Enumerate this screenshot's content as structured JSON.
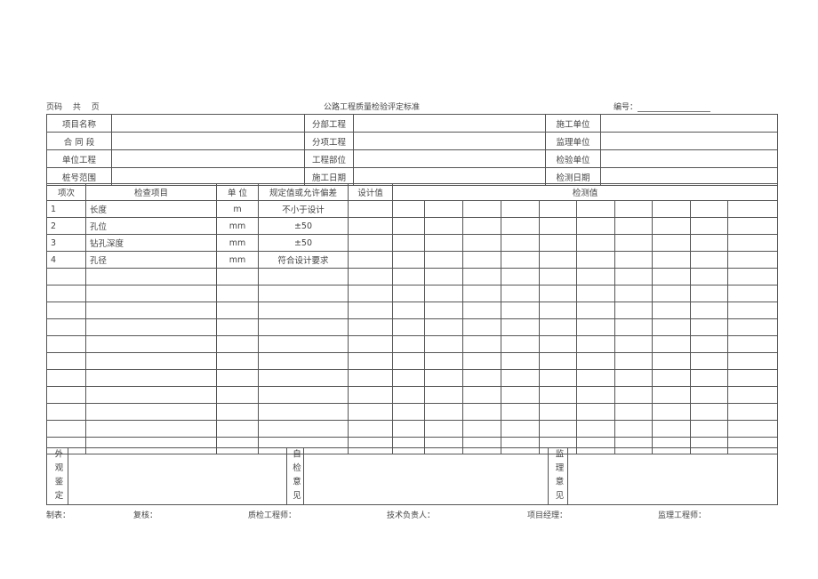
{
  "header": {
    "page_label": "页码　 共　 页",
    "title": "公路工程质量检验评定标准",
    "number_label": "编号："
  },
  "info_rows": [
    {
      "l1": "项目名称",
      "l2": "分部工程",
      "l3": "施工单位"
    },
    {
      "l1": "合 同 段",
      "l2": "分项工程",
      "l3": "监理单位"
    },
    {
      "l1": "单位工程",
      "l2": "工程部位",
      "l3": "检验单位"
    },
    {
      "l1": "桩号范围",
      "l2": "施工日期",
      "l3": "检测日期"
    }
  ],
  "columns": {
    "no": "项次",
    "item": "检查项目",
    "unit": "单 位",
    "spec": "规定值或允许偏差",
    "design": "设计值",
    "measured": "检测值"
  },
  "items": [
    {
      "no": "1",
      "item": "长度",
      "unit": "m",
      "spec": "不小于设计"
    },
    {
      "no": "2",
      "item": "孔位",
      "unit": "mm",
      "spec": "±50"
    },
    {
      "no": "3",
      "item": "钻孔深度",
      "unit": "mm",
      "spec": "±50"
    },
    {
      "no": "4",
      "item": "孔径",
      "unit": "mm",
      "spec": "符合设计要求"
    }
  ],
  "bottom": {
    "appearance": "外观鉴定",
    "self_check": "自检意见",
    "supervision": "监理意见"
  },
  "signatures": [
    "制表：",
    "复核：",
    "质检工程师：",
    "技术负责人：",
    "项目经理：",
    "监理工程师："
  ]
}
